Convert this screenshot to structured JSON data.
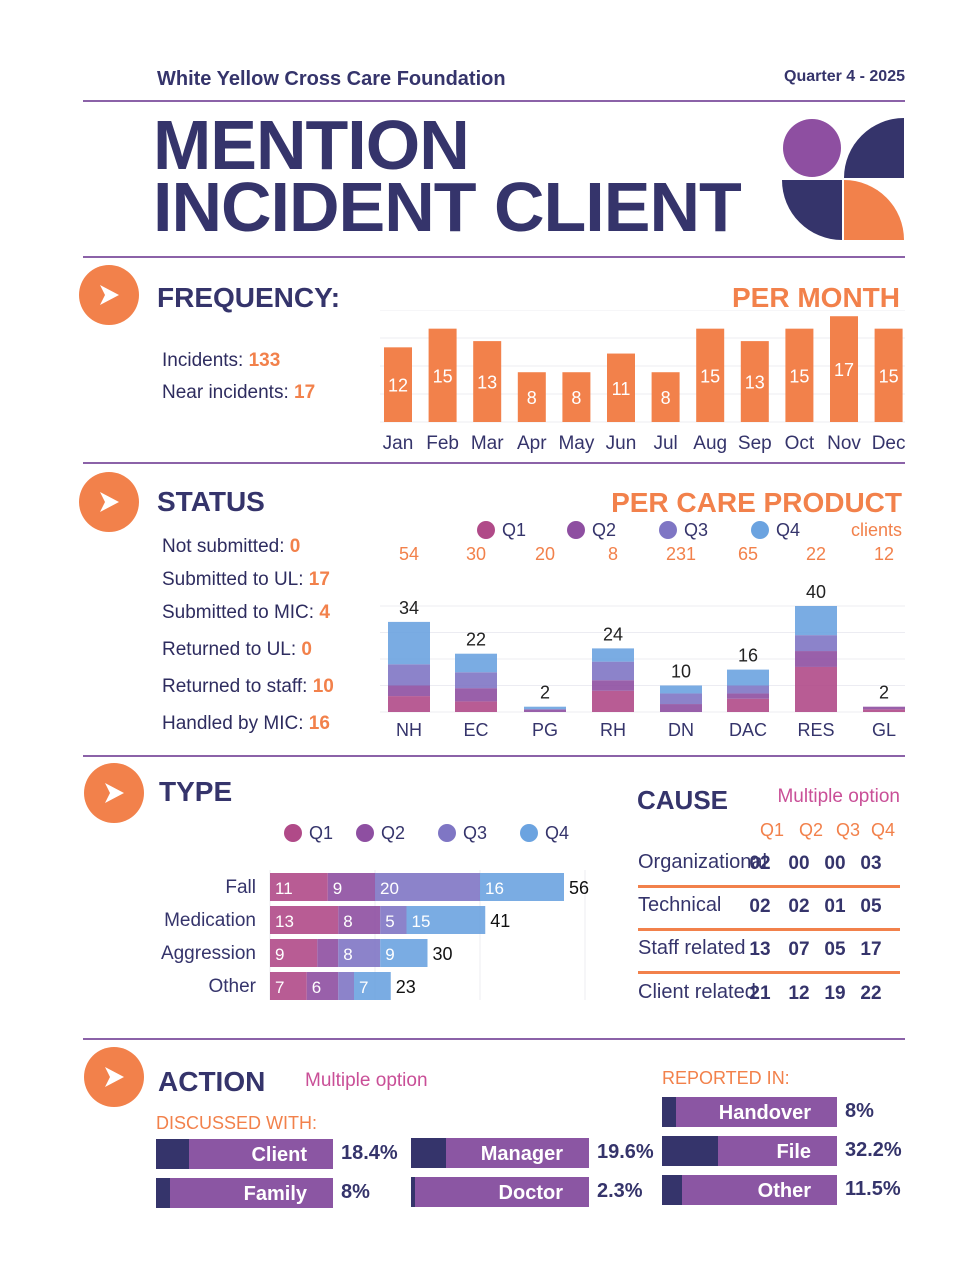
{
  "header": {
    "organization": "White Yellow Cross Care Foundation",
    "quarter": "Quarter 4 - 2025",
    "title_line1": "MENTION",
    "title_line2": "INCIDENT CLIENT"
  },
  "colors": {
    "navy": "#35346b",
    "orange": "#f2814b",
    "purple": "#8b56a3",
    "q1": "#b04a88",
    "q2": "#8e4fa1",
    "q3": "#7f76c4",
    "q4": "#6ba3e0",
    "pink_text": "#c94f97"
  },
  "frequency": {
    "title": "FREQUENCY:",
    "right_title": "PER MONTH",
    "incidents_label": "Incidents:",
    "incidents_value": "133",
    "near_label": "Near incidents:",
    "near_value": "17"
  },
  "status": {
    "title": "STATUS",
    "right_title": "PER CARE PRODUCT",
    "legend": [
      "Q1",
      "Q2",
      "Q3",
      "Q4"
    ],
    "clients_label": "clients",
    "items": [
      {
        "label": "Not submitted:",
        "value": "0"
      },
      {
        "label": "Submitted to UL:",
        "value": "17"
      },
      {
        "label": "Submitted to MIC:",
        "value": "4"
      },
      {
        "label": "Returned to UL:",
        "value": "0"
      },
      {
        "label": "Returned to staff:",
        "value": "10"
      },
      {
        "label": "Handled by MIC:",
        "value": "16"
      }
    ]
  },
  "type": {
    "title": "TYPE",
    "legend": [
      "Q1",
      "Q2",
      "Q3",
      "Q4"
    ]
  },
  "cause": {
    "title": "CAUSE",
    "note": "Multiple option",
    "quarters": [
      "Q1",
      "Q2",
      "Q3",
      "Q4"
    ],
    "rows": [
      {
        "label": "Organizational",
        "values": [
          "02",
          "00",
          "00",
          "03"
        ]
      },
      {
        "label": "Technical",
        "values": [
          "02",
          "02",
          "01",
          "05"
        ]
      },
      {
        "label": "Staff related",
        "values": [
          "13",
          "07",
          "05",
          "17"
        ]
      },
      {
        "label": "Client related",
        "values": [
          "21",
          "12",
          "19",
          "22"
        ]
      }
    ]
  },
  "action": {
    "title": "ACTION",
    "note": "Multiple option",
    "discussed_label": "DISCUSSED WITH:",
    "reported_label": "REPORTED IN:",
    "discussed": [
      {
        "label": "Client",
        "pct": "18.4%",
        "fraction": 0.184
      },
      {
        "label": "Manager",
        "pct": "19.6%",
        "fraction": 0.196
      },
      {
        "label": "Family",
        "pct": "8%",
        "fraction": 0.08
      },
      {
        "label": "Doctor",
        "pct": "2.3%",
        "fraction": 0.023
      }
    ],
    "reported": [
      {
        "label": "Handover",
        "pct": "8%",
        "fraction": 0.08
      },
      {
        "label": "File",
        "pct": "32.2%",
        "fraction": 0.322
      },
      {
        "label": "Other",
        "pct": "11.5%",
        "fraction": 0.115
      }
    ]
  },
  "chart_data": [
    {
      "type": "bar",
      "title": "PER MONTH",
      "categories": [
        "Jan",
        "Feb",
        "Mar",
        "Apr",
        "May",
        "Jun",
        "Jul",
        "Aug",
        "Sep",
        "Oct",
        "Nov",
        "Dec"
      ],
      "values": [
        12,
        15,
        13,
        8,
        8,
        11,
        8,
        15,
        13,
        15,
        17,
        15
      ],
      "ylim": [
        0,
        18
      ]
    },
    {
      "type": "bar",
      "stacked": true,
      "title": "PER CARE PRODUCT",
      "categories": [
        "NH",
        "EC",
        "PG",
        "RH",
        "DN",
        "DAC",
        "RES",
        "GL"
      ],
      "clients": [
        "54",
        "30",
        "20",
        "8",
        "231",
        "65",
        "22",
        "12"
      ],
      "totals": [
        34,
        22,
        2,
        24,
        10,
        16,
        40,
        2
      ],
      "series": [
        {
          "name": "Q1",
          "values": [
            6,
            4,
            0,
            8,
            0,
            5,
            17,
            1
          ]
        },
        {
          "name": "Q2",
          "values": [
            4,
            5,
            1,
            4,
            3,
            2,
            6,
            1
          ]
        },
        {
          "name": "Q3",
          "values": [
            8,
            6,
            0,
            7,
            4,
            3,
            6,
            0
          ]
        },
        {
          "name": "Q4",
          "values": [
            16,
            7,
            1,
            5,
            3,
            6,
            11,
            0
          ]
        }
      ]
    },
    {
      "type": "bar",
      "orientation": "horizontal",
      "stacked": true,
      "title": "TYPE",
      "categories": [
        "Fall",
        "Medication",
        "Aggression",
        "Other"
      ],
      "totals": [
        56,
        41,
        30,
        23
      ],
      "series": [
        {
          "name": "Q1",
          "values": [
            11,
            13,
            9,
            7
          ]
        },
        {
          "name": "Q2",
          "values": [
            9,
            8,
            4,
            6
          ]
        },
        {
          "name": "Q3",
          "values": [
            20,
            5,
            8,
            3
          ]
        },
        {
          "name": "Q4",
          "values": [
            16,
            15,
            9,
            7
          ]
        }
      ],
      "segment_labels": [
        [
          "11",
          "9",
          "20",
          "16"
        ],
        [
          "13",
          "8",
          "5",
          "15"
        ],
        [
          "9",
          "",
          "8",
          "9"
        ],
        [
          "7",
          "6",
          "",
          "7"
        ]
      ]
    }
  ]
}
